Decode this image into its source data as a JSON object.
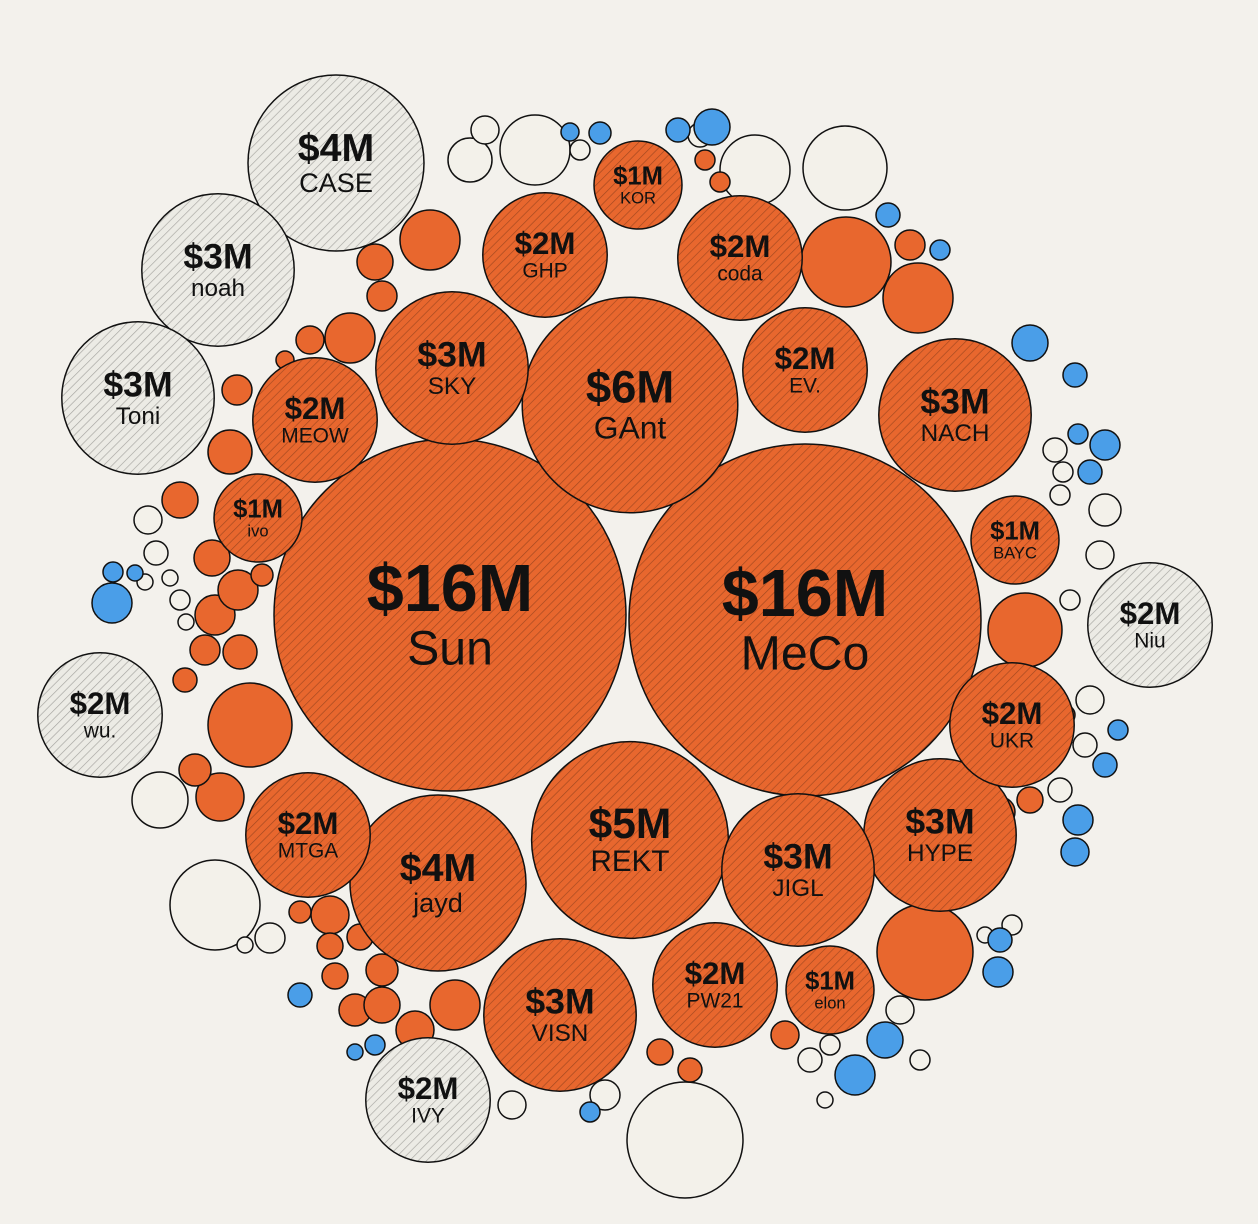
{
  "chart_data": {
    "type": "bubble",
    "categories": [
      "Sun",
      "MeCo",
      "GAnt",
      "REKT",
      "CASE",
      "jayd",
      "SKY",
      "NACH",
      "HYPE",
      "JIGL",
      "VISN",
      "noah",
      "Toni",
      "GHP",
      "coda",
      "EV.",
      "MEOW",
      "MTGA",
      "UKR",
      "PW21",
      "Niu",
      "wu.",
      "IVY",
      "KOR",
      "ivo",
      "BAYC",
      "elon"
    ],
    "values": [
      16,
      16,
      6,
      5,
      4,
      4,
      3,
      3,
      3,
      3,
      3,
      3,
      3,
      2,
      2,
      2,
      2,
      2,
      2,
      2,
      2,
      2,
      2,
      1,
      1,
      1,
      1
    ],
    "value_labels": [
      "$16M",
      "$16M",
      "$6M",
      "$5M",
      "$4M",
      "$4M",
      "$3M",
      "$3M",
      "$3M",
      "$3M",
      "$3M",
      "$3M",
      "$3M",
      "$2M",
      "$2M",
      "$2M",
      "$2M",
      "$2M",
      "$2M",
      "$2M",
      "$2M",
      "$2M",
      "$2M",
      "$1M",
      "$1M",
      "$1M",
      "$1M"
    ],
    "colors": [
      "#e8672e",
      "#e8672e",
      "#e8672e",
      "#e8672e",
      "#ecebe5",
      "#e8672e",
      "#e8672e",
      "#e8672e",
      "#e8672e",
      "#e8672e",
      "#e8672e",
      "#ecebe5",
      "#ecebe5",
      "#e8672e",
      "#e8672e",
      "#e8672e",
      "#e8672e",
      "#e8672e",
      "#e8672e",
      "#e8672e",
      "#ecebe5",
      "#ecebe5",
      "#ecebe5",
      "#e8672e",
      "#e8672e",
      "#e8672e",
      "#e8672e"
    ]
  }
}
